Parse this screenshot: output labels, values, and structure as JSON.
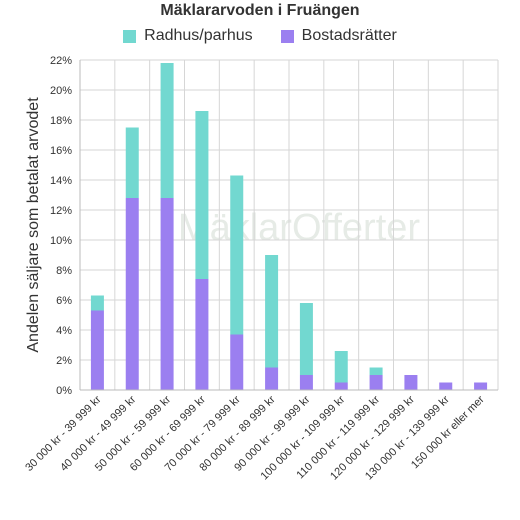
{
  "chart_data": {
    "type": "bar",
    "stacked": true,
    "title": "Mäklararvoden i Fruängen",
    "ylabel": "Andelen säljare som betalat arvodet",
    "xlabel": "",
    "ylim": [
      0,
      22
    ],
    "yticks": [
      "0%",
      "2%",
      "4%",
      "6%",
      "8%",
      "10%",
      "12%",
      "14%",
      "16%",
      "18%",
      "20%",
      "22%"
    ],
    "grid": true,
    "legend_position": "top",
    "watermark": "MäklarOfferter",
    "categories": [
      "30 000 kr - 39 999 kr",
      "40 000 kr - 49 999 kr",
      "50 000 kr - 59 999 kr",
      "60 000 kr - 69 999 kr",
      "70 000 kr - 79 999 kr",
      "80 000 kr - 89 999 kr",
      "90 000 kr - 99 999 kr",
      "100 000 kr - 109 999 kr",
      "110 000 kr - 119 999 kr",
      "120 000 kr - 129 999 kr",
      "130 000 kr - 139 999 kr",
      "150 000 kr eller mer"
    ],
    "series": [
      {
        "name": "Bostadsrätter",
        "color": "#9b7ff0",
        "values": [
          5.3,
          12.8,
          12.8,
          7.4,
          3.7,
          1.5,
          1.0,
          0.5,
          1.0,
          1.0,
          0.5,
          0.5
        ]
      },
      {
        "name": "Radhus/parhus",
        "color": "#72d8d0",
        "values": [
          1.0,
          4.7,
          9.0,
          11.2,
          10.6,
          7.5,
          4.8,
          2.1,
          0.5,
          0.0,
          0.0,
          0.0
        ]
      }
    ],
    "legend_order": [
      "Radhus/parhus",
      "Bostadsrätter"
    ]
  }
}
